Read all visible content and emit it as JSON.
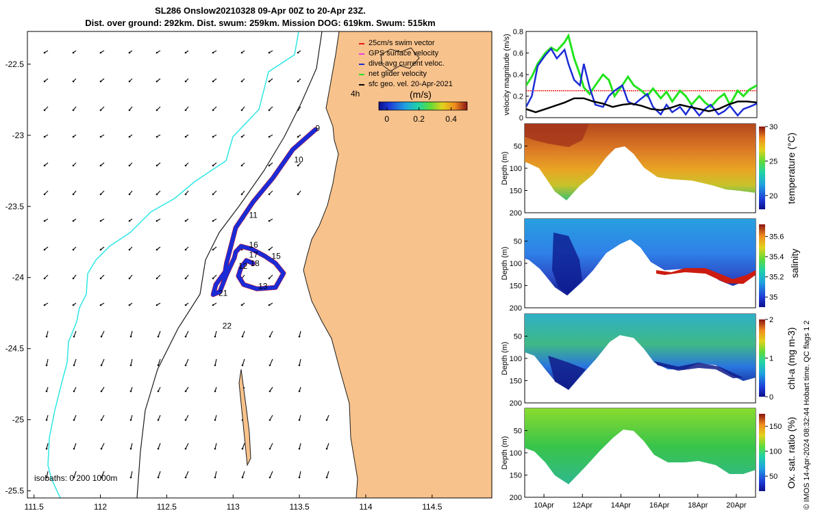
{
  "header": {
    "title_line1": "SL286 Onslow20210328 09-Apr 00Z to 20-Apr 23Z.",
    "title_line2": "Dist. over ground: 292km. Dist. swum: 259km. Mission DOG: 619km. Swum: 515km"
  },
  "colors": {
    "land": "#f8c28c",
    "coast": "#1a1a1a",
    "isobath_cyan": "#2ee6e6",
    "track": "#e8160f",
    "current": "#1a2bd6",
    "net": "#22e41c",
    "threshold": "#e8160f"
  },
  "chart_data": [
    {
      "type": "map",
      "name": "glider-track-map",
      "x_ticks": [
        "111.5",
        "112",
        "112.5",
        "113",
        "113.5",
        "114",
        "114.5"
      ],
      "x_tick_values": [
        111.5,
        112,
        112.5,
        113,
        113.5,
        114,
        114.5
      ],
      "y_ticks": [
        "-22.5",
        "-23",
        "-23.5",
        "-24",
        "-24.5",
        "-25",
        "-25.5"
      ],
      "y_tick_values": [
        -22.5,
        -23,
        -23.5,
        -24,
        -24.5,
        -25,
        -25.5
      ],
      "xlim": [
        111.45,
        114.95
      ],
      "ylim": [
        -25.55,
        -22.27
      ],
      "legend": [
        {
          "label": "25cm/s swim vector",
          "color": "#e8160f"
        },
        {
          "label": "GPS surface velocity",
          "color": "#e83ce0"
        },
        {
          "label": "dive-avg current veloc.",
          "color": "#1a2bd6"
        },
        {
          "label": "net glider velocity",
          "color": "#22e41c"
        },
        {
          "label": "sfc geo. vel. 20-Apr-2021",
          "color": "#000000"
        }
      ],
      "colorbar": {
        "label": "(m/s)",
        "ticks": [
          "0",
          "0.2",
          "0.4"
        ],
        "tick_values": [
          0,
          0.2,
          0.4
        ],
        "range": [
          -0.05,
          0.5
        ]
      },
      "time_label": "4h",
      "isobaths_label": "isobaths: 0   200  1000m",
      "day_markers": [
        {
          "label": "9",
          "lon": 113.62,
          "lat": -22.97
        },
        {
          "label": "10",
          "lon": 113.46,
          "lat": -23.19
        },
        {
          "label": "11",
          "lon": 113.12,
          "lat": -23.58
        },
        {
          "label": "16",
          "lon": 113.12,
          "lat": -23.79
        },
        {
          "label": "17",
          "lon": 113.12,
          "lat": -23.86
        },
        {
          "label": "15",
          "lon": 113.29,
          "lat": -23.87
        },
        {
          "label": "18",
          "lon": 113.13,
          "lat": -23.92
        },
        {
          "label": "12",
          "lon": 113.04,
          "lat": -23.94
        },
        {
          "label": "13",
          "lon": 113.19,
          "lat": -24.08
        },
        {
          "label": "21",
          "lon": 112.89,
          "lat": -24.13
        },
        {
          "label": "22",
          "lon": 112.92,
          "lat": -24.36
        }
      ],
      "track": [
        [
          113.62,
          -22.96
        ],
        [
          113.45,
          -23.1
        ],
        [
          113.3,
          -23.3
        ],
        [
          113.15,
          -23.47
        ],
        [
          113.02,
          -23.65
        ],
        [
          112.97,
          -23.83
        ],
        [
          112.95,
          -23.9
        ],
        [
          112.94,
          -23.96
        ],
        [
          112.87,
          -24.05
        ],
        [
          112.85,
          -24.12
        ],
        [
          112.9,
          -24.1
        ],
        [
          112.95,
          -23.98
        ],
        [
          113.01,
          -23.86
        ],
        [
          113.02,
          -23.82
        ],
        [
          113.06,
          -23.78
        ],
        [
          113.14,
          -23.8
        ],
        [
          113.24,
          -23.85
        ],
        [
          113.32,
          -23.9
        ],
        [
          113.38,
          -23.97
        ],
        [
          113.32,
          -24.07
        ],
        [
          113.18,
          -24.08
        ],
        [
          113.08,
          -24.05
        ],
        [
          113.04,
          -23.99
        ],
        [
          113.06,
          -23.93
        ],
        [
          113.1,
          -23.88
        ],
        [
          113.15,
          -23.9
        ]
      ]
    },
    {
      "type": "line",
      "name": "velocity-magnitude",
      "ylabel": "velocity magnitude (m/s)",
      "ylim": [
        0,
        0.8
      ],
      "y_ticks": [
        "0",
        "0.2",
        "0.4",
        "0.6",
        "0.8"
      ],
      "y_tick_values": [
        0,
        0.2,
        0.4,
        0.6,
        0.8
      ],
      "xlim": [
        9.0,
        21.0
      ],
      "threshold": 0.25,
      "series": [
        {
          "name": "net glider velocity",
          "color": "#22e41c",
          "x": [
            9.0,
            9.3,
            9.6,
            10.0,
            10.3,
            10.6,
            11.0,
            11.2,
            11.5,
            11.8,
            12.0,
            12.3,
            12.6,
            13.0,
            13.3,
            13.6,
            14.0,
            14.3,
            14.6,
            15.0,
            15.3,
            15.6,
            16.0,
            16.3,
            16.6,
            17.0,
            17.3,
            17.6,
            18.0,
            18.3,
            18.6,
            19.0,
            19.3,
            19.6,
            20.0,
            20.3,
            20.6,
            21.0
          ],
          "values": [
            0.3,
            0.38,
            0.5,
            0.6,
            0.65,
            0.62,
            0.7,
            0.76,
            0.55,
            0.4,
            0.28,
            0.22,
            0.3,
            0.4,
            0.35,
            0.2,
            0.3,
            0.38,
            0.3,
            0.25,
            0.2,
            0.27,
            0.18,
            0.24,
            0.15,
            0.25,
            0.2,
            0.12,
            0.2,
            0.14,
            0.1,
            0.18,
            0.22,
            0.12,
            0.25,
            0.2,
            0.26,
            0.3
          ]
        },
        {
          "name": "dive-avg current veloc.",
          "color": "#1a2bd6",
          "x": [
            9.0,
            9.3,
            9.6,
            10.0,
            10.3,
            10.6,
            11.0,
            11.2,
            11.5,
            11.8,
            12.0,
            12.3,
            12.6,
            13.0,
            13.3,
            13.6,
            14.0,
            14.3,
            14.6,
            15.0,
            15.3,
            15.6,
            16.0,
            16.3,
            16.6,
            17.0,
            17.3,
            17.6,
            18.0,
            18.3,
            18.6,
            19.0,
            19.3,
            19.6,
            20.0,
            20.3,
            20.6,
            21.0
          ],
          "values": [
            0.1,
            0.2,
            0.48,
            0.58,
            0.64,
            0.55,
            0.63,
            0.5,
            0.35,
            0.3,
            0.5,
            0.28,
            0.12,
            0.1,
            0.2,
            0.25,
            0.3,
            0.15,
            0.12,
            0.18,
            0.22,
            0.1,
            0.03,
            0.12,
            0.05,
            0.1,
            0.03,
            0.11,
            0.02,
            0.08,
            0.12,
            0.03,
            0.06,
            0.11,
            0.02,
            0.08,
            0.1,
            0.13
          ]
        },
        {
          "name": "sfc geo. vel.",
          "color": "#000000",
          "x": [
            9.0,
            9.5,
            10.0,
            10.5,
            11.0,
            11.5,
            12.0,
            12.5,
            13.0,
            13.5,
            14.0,
            14.5,
            15.0,
            15.5,
            16.0,
            16.5,
            17.0,
            17.5,
            18.0,
            18.5,
            19.0,
            19.5,
            20.0,
            20.5,
            21.0
          ],
          "values": [
            0.08,
            0.05,
            0.08,
            0.11,
            0.14,
            0.18,
            0.18,
            0.15,
            0.13,
            0.1,
            0.12,
            0.13,
            0.11,
            0.08,
            0.07,
            0.09,
            0.12,
            0.1,
            0.08,
            0.06,
            0.08,
            0.12,
            0.15,
            0.15,
            0.14
          ]
        }
      ]
    },
    {
      "type": "heatmap",
      "name": "temperature-section",
      "ylabel": "Depth (m)",
      "clabel": "temperature (°C)",
      "ylim": [
        200,
        0
      ],
      "y_ticks": [
        "50",
        "100",
        "150",
        "200"
      ],
      "y_tick_values": [
        50,
        100,
        150,
        200
      ],
      "colorbar_ticks": [
        "20",
        "25",
        "30"
      ],
      "colorbar_tick_values": [
        20,
        25,
        30
      ],
      "colorbar_range": [
        18,
        30
      ]
    },
    {
      "type": "heatmap",
      "name": "salinity-section",
      "ylabel": "Depth (m)",
      "clabel": "salinity",
      "ylim": [
        200,
        0
      ],
      "y_ticks": [
        "50",
        "100",
        "150",
        "200"
      ],
      "y_tick_values": [
        50,
        100,
        150,
        200
      ],
      "colorbar_ticks": [
        "35",
        "35.2",
        "35.4",
        "35.6"
      ],
      "colorbar_tick_values": [
        35,
        35.2,
        35.4,
        35.6
      ],
      "colorbar_range": [
        34.9,
        35.72
      ]
    },
    {
      "type": "heatmap",
      "name": "chl-a-section",
      "ylabel": "Depth (m)",
      "clabel": "chl-a (mg m-3)",
      "ylim": [
        200,
        0
      ],
      "y_ticks": [
        "50",
        "100",
        "150",
        "200"
      ],
      "y_tick_values": [
        50,
        100,
        150,
        200
      ],
      "colorbar_ticks": [
        "0",
        "1",
        "2"
      ],
      "colorbar_tick_values": [
        0,
        1,
        2
      ],
      "colorbar_range": [
        0,
        2
      ]
    },
    {
      "type": "heatmap",
      "name": "oxygen-section",
      "ylabel": "Depth (m)",
      "clabel": "Ox. sat. ratio (%)",
      "ylim": [
        200,
        0
      ],
      "y_ticks": [
        "50",
        "100",
        "150",
        "200"
      ],
      "y_tick_values": [
        50,
        100,
        150,
        200
      ],
      "colorbar_ticks": [
        "50",
        "100",
        "150"
      ],
      "colorbar_tick_values": [
        50,
        100,
        150
      ],
      "colorbar_range": [
        20,
        175
      ]
    }
  ],
  "time_axis": {
    "ticks": [
      "10Apr",
      "12Apr",
      "14Apr",
      "16Apr",
      "18Apr",
      "20Apr"
    ],
    "tick_values": [
      10,
      12,
      14,
      16,
      18,
      20
    ],
    "xlim": [
      9.0,
      21.0
    ]
  },
  "credit": "© IMOS 14-Apr-2024 08:32:44 Hobart time. QC flags 1  2"
}
